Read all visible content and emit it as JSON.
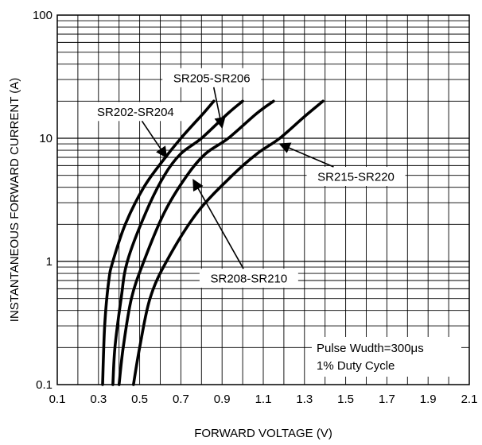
{
  "chart_data": {
    "type": "line",
    "title": "",
    "xlabel": "FORWARD VOLTAGE (V)",
    "ylabel": "INSTANTANEOUS FORWARD CURRENT (A)",
    "xlim": [
      0.1,
      2.1
    ],
    "ylim": [
      0.1,
      100
    ],
    "yscale": "log",
    "grid": true,
    "x_ticks": [
      "0.1",
      "0.3",
      "0.5",
      "0.7",
      "0.9",
      "1.1",
      "1.3",
      "1.5",
      "1.7",
      "1.9",
      "2.1"
    ],
    "y_ticks": [
      "0.1",
      "1",
      "10",
      "100"
    ],
    "series": [
      {
        "name": "SR202-SR204",
        "points": [
          [
            0.32,
            0.1
          ],
          [
            0.33,
            0.3
          ],
          [
            0.35,
            0.7
          ],
          [
            0.37,
            1.0
          ],
          [
            0.43,
            2.0
          ],
          [
            0.52,
            4.0
          ],
          [
            0.61,
            6.5
          ],
          [
            0.7,
            10.0
          ],
          [
            0.81,
            16.0
          ],
          [
            0.86,
            20.0
          ]
        ]
      },
      {
        "name": "SR205-SR206",
        "points": [
          [
            0.37,
            0.1
          ],
          [
            0.38,
            0.2
          ],
          [
            0.41,
            0.5
          ],
          [
            0.44,
            1.0
          ],
          [
            0.53,
            2.5
          ],
          [
            0.62,
            5.0
          ],
          [
            0.7,
            7.5
          ],
          [
            0.8,
            10.0
          ],
          [
            0.93,
            16.0
          ],
          [
            1.0,
            20.0
          ]
        ]
      },
      {
        "name": "SR208-SR210",
        "points": [
          [
            0.4,
            0.1
          ],
          [
            0.42,
            0.2
          ],
          [
            0.46,
            0.5
          ],
          [
            0.52,
            1.0
          ],
          [
            0.62,
            2.5
          ],
          [
            0.73,
            5.0
          ],
          [
            0.82,
            7.5
          ],
          [
            0.93,
            10.0
          ],
          [
            1.07,
            16.0
          ],
          [
            1.15,
            20.0
          ]
        ]
      },
      {
        "name": "SR215-SR220",
        "points": [
          [
            0.47,
            0.1
          ],
          [
            0.5,
            0.2
          ],
          [
            0.55,
            0.5
          ],
          [
            0.63,
            1.0
          ],
          [
            0.78,
            2.5
          ],
          [
            0.95,
            5.0
          ],
          [
            1.07,
            7.5
          ],
          [
            1.18,
            10.0
          ],
          [
            1.3,
            15.0
          ],
          [
            1.39,
            20.0
          ]
        ]
      }
    ],
    "annotations": [
      {
        "text": "SR205-SR206",
        "label_x": 0.85,
        "label_y": 31,
        "arrow_to": [
          0.9,
          12.2
        ]
      },
      {
        "text": "SR202-SR204",
        "label_x": 0.48,
        "label_y": 16.5,
        "arrow_to": [
          0.63,
          7.0
        ]
      },
      {
        "text": "SR215-SR220",
        "label_x": 1.55,
        "label_y": 4.9,
        "arrow_to": [
          1.18,
          9.0
        ]
      },
      {
        "text": "SR208-SR210",
        "label_x": 1.03,
        "label_y": 0.73,
        "arrow_to": [
          0.76,
          4.6
        ]
      }
    ],
    "note": [
      "Pulse Wudth=300μs",
      "1% Duty Cycle"
    ]
  }
}
